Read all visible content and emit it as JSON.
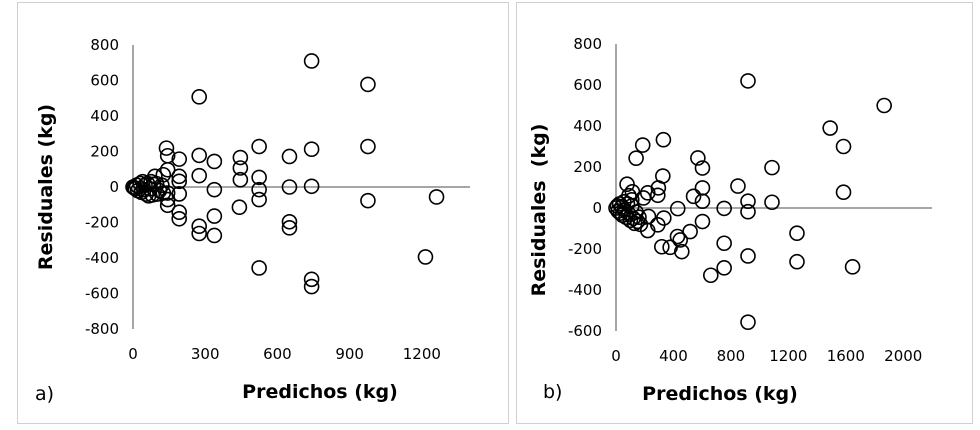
{
  "chart_data": [
    {
      "type": "scatter",
      "panel_label": "a)",
      "xlabel": "Predichos (kg)",
      "ylabel": "Residuales (kg)",
      "xlim": [
        0,
        1400
      ],
      "ylim": [
        -800,
        800
      ],
      "xticks": [
        "0",
        "300",
        "600",
        "900",
        "1200"
      ],
      "yticks": [
        "800",
        "600",
        "400",
        "200",
        "0",
        "-200",
        "-400",
        "-600",
        "-800"
      ],
      "grid": false,
      "marker": "open-circle",
      "points": [
        [
          742,
          710
        ],
        [
          976,
          578
        ],
        [
          275,
          508
        ],
        [
          139,
          219
        ],
        [
          144,
          176
        ],
        [
          192,
          157
        ],
        [
          275,
          178
        ],
        [
          338,
          144
        ],
        [
          446,
          166
        ],
        [
          446,
          107
        ],
        [
          446,
          41
        ],
        [
          524,
          228
        ],
        [
          524,
          54
        ],
        [
          524,
          -15
        ],
        [
          524,
          -71
        ],
        [
          650,
          172
        ],
        [
          650,
          0
        ],
        [
          742,
          213
        ],
        [
          742,
          4
        ],
        [
          976,
          228
        ],
        [
          976,
          -77
        ],
        [
          1261,
          -56
        ],
        [
          1215,
          -394
        ],
        [
          524,
          -456
        ],
        [
          742,
          -520
        ],
        [
          742,
          -561
        ],
        [
          650,
          -196
        ],
        [
          650,
          -230
        ],
        [
          442,
          -114
        ],
        [
          338,
          -164
        ],
        [
          338,
          -273
        ],
        [
          275,
          -221
        ],
        [
          275,
          -262
        ],
        [
          338,
          -15
        ],
        [
          275,
          64
        ],
        [
          192,
          60
        ],
        [
          192,
          32
        ],
        [
          192,
          -39
        ],
        [
          192,
          -142
        ],
        [
          192,
          -179
        ],
        [
          144,
          97
        ],
        [
          144,
          -34
        ],
        [
          144,
          -71
        ],
        [
          144,
          -103
        ],
        [
          126,
          -34
        ],
        [
          91,
          60
        ],
        [
          126,
          69
        ],
        [
          98,
          19
        ],
        [
          0,
          0
        ],
        [
          5,
          -5
        ],
        [
          10,
          -10
        ],
        [
          15,
          10
        ],
        [
          20,
          -20
        ],
        [
          30,
          20
        ],
        [
          35,
          -30
        ],
        [
          40,
          30
        ],
        [
          45,
          -15
        ],
        [
          50,
          10
        ],
        [
          55,
          -40
        ],
        [
          60,
          20
        ],
        [
          65,
          -50
        ],
        [
          70,
          -10
        ],
        [
          75,
          30
        ],
        [
          80,
          -45
        ],
        [
          85,
          15
        ],
        [
          100,
          -40
        ],
        [
          110,
          -20
        ],
        [
          120,
          10
        ]
      ]
    },
    {
      "type": "scatter",
      "panel_label": "b)",
      "xlabel": "Predichos (kg)",
      "ylabel": "Residuales  (kg)",
      "xlim": [
        0,
        2200
      ],
      "ylim": [
        -600,
        800
      ],
      "xticks": [
        "0",
        "400",
        "800",
        "1200",
        "1600",
        "2000"
      ],
      "yticks": [
        "800",
        "600",
        "400",
        "200",
        "0",
        "-200",
        "-400",
        "-600"
      ],
      "grid": false,
      "marker": "open-circle",
      "points": [
        [
          919,
          620
        ],
        [
          1867,
          500
        ],
        [
          1491,
          390
        ],
        [
          1584,
          300
        ],
        [
          1584,
          77
        ],
        [
          1086,
          197
        ],
        [
          1086,
          28
        ],
        [
          849,
          107
        ],
        [
          919,
          33
        ],
        [
          919,
          -18
        ],
        [
          753,
          -2
        ],
        [
          753,
          -172
        ],
        [
          753,
          -292
        ],
        [
          660,
          -328
        ],
        [
          919,
          -234
        ],
        [
          919,
          -557
        ],
        [
          1260,
          -123
        ],
        [
          1260,
          -262
        ],
        [
          1647,
          -287
        ],
        [
          570,
          244
        ],
        [
          602,
          195
        ],
        [
          602,
          98
        ],
        [
          602,
          33
        ],
        [
          602,
          -66
        ],
        [
          540,
          57
        ],
        [
          516,
          -115
        ],
        [
          458,
          -213
        ],
        [
          447,
          -156
        ],
        [
          428,
          -139
        ],
        [
          430,
          -3
        ],
        [
          377,
          -192
        ],
        [
          319,
          -189
        ],
        [
          333,
          -49
        ],
        [
          326,
          156
        ],
        [
          330,
          333
        ],
        [
          295,
          98
        ],
        [
          291,
          62
        ],
        [
          291,
          -82
        ],
        [
          186,
          307
        ],
        [
          140,
          243
        ],
        [
          221,
          74
        ],
        [
          221,
          -110
        ],
        [
          226,
          -41
        ],
        [
          191,
          49
        ],
        [
          77,
          116
        ],
        [
          114,
          79
        ],
        [
          0,
          0
        ],
        [
          10,
          10
        ],
        [
          15,
          -15
        ],
        [
          25,
          20
        ],
        [
          30,
          -25
        ],
        [
          40,
          5
        ],
        [
          45,
          -35
        ],
        [
          55,
          30
        ],
        [
          60,
          -10
        ],
        [
          70,
          -45
        ],
        [
          80,
          20
        ],
        [
          90,
          -30
        ],
        [
          100,
          -60
        ],
        [
          110,
          10
        ],
        [
          120,
          -50
        ],
        [
          130,
          -75
        ],
        [
          140,
          -20
        ],
        [
          150,
          -65
        ],
        [
          160,
          -45
        ],
        [
          170,
          -80
        ],
        [
          110,
          40
        ],
        [
          90,
          60
        ]
      ]
    }
  ]
}
